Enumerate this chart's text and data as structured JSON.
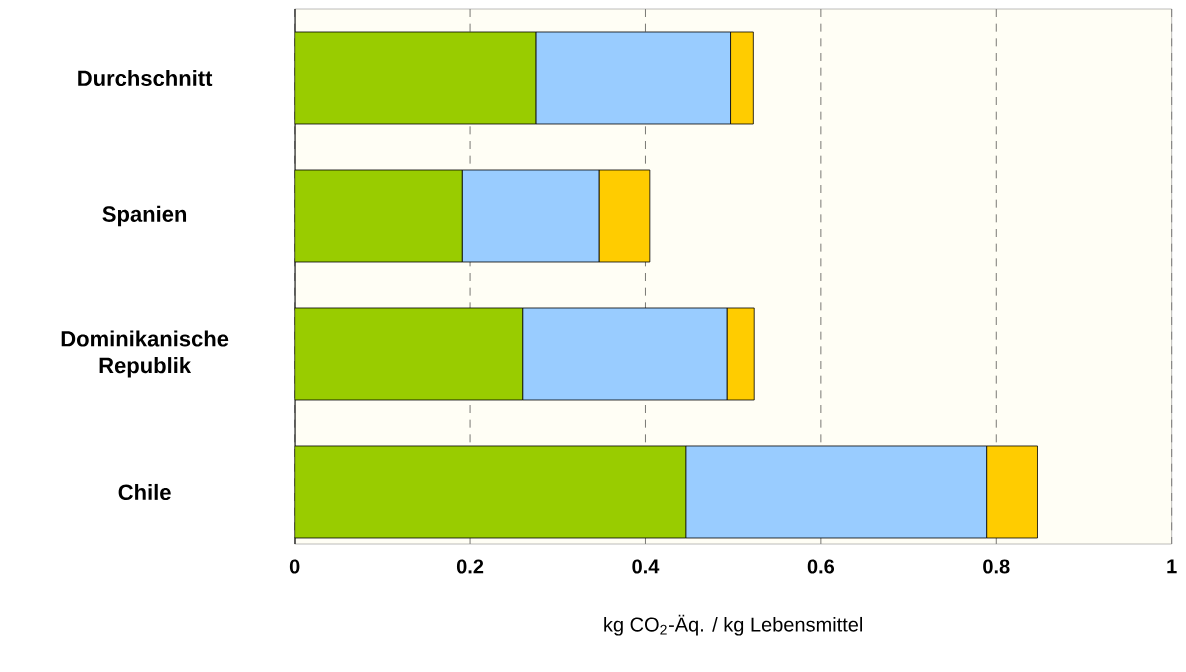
{
  "chart_data": {
    "type": "bar",
    "orientation": "horizontal",
    "stacked": true,
    "categories": [
      "Durchschnitt",
      "Spanien",
      "Dominikanische Republik",
      "Chile"
    ],
    "series": [
      {
        "color": "#99cc00",
        "values": [
          0.275,
          0.191,
          0.26,
          0.446
        ]
      },
      {
        "color": "#99ccff",
        "values": [
          0.222,
          0.156,
          0.233,
          0.343
        ]
      },
      {
        "color": "#ffcc00",
        "values": [
          0.026,
          0.058,
          0.031,
          0.058
        ]
      }
    ],
    "xlim": [
      0,
      1
    ],
    "xticks": [
      0,
      0.2,
      0.4,
      0.6,
      0.8,
      1
    ],
    "xlabel": "kg CO$_{2}$-Äq. / kg Lebensmittel",
    "grid": "x"
  }
}
